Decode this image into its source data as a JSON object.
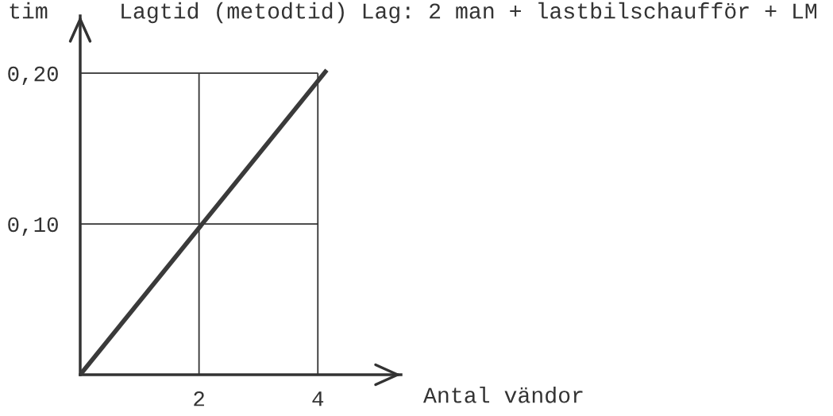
{
  "chart_data": {
    "type": "line",
    "title": "Lagtid (metodtid) Lag: 2 man + lastbilschaufför + LM",
    "xlabel": "Antal vändor",
    "ylabel": "tim",
    "x": [
      0,
      4.15
    ],
    "series": [
      {
        "color": "#3a3a3a",
        "values": [
          0,
          0.202
        ]
      }
    ],
    "xlim": [
      0,
      5.4
    ],
    "ylim": [
      0,
      0.238
    ],
    "xticks": [
      2,
      4
    ],
    "yticks": [
      {
        "value": 0.1,
        "label": "0,10"
      },
      {
        "value": 0.2,
        "label": "0,20"
      }
    ],
    "grid": true,
    "marker": "none",
    "line_style": "solid"
  }
}
